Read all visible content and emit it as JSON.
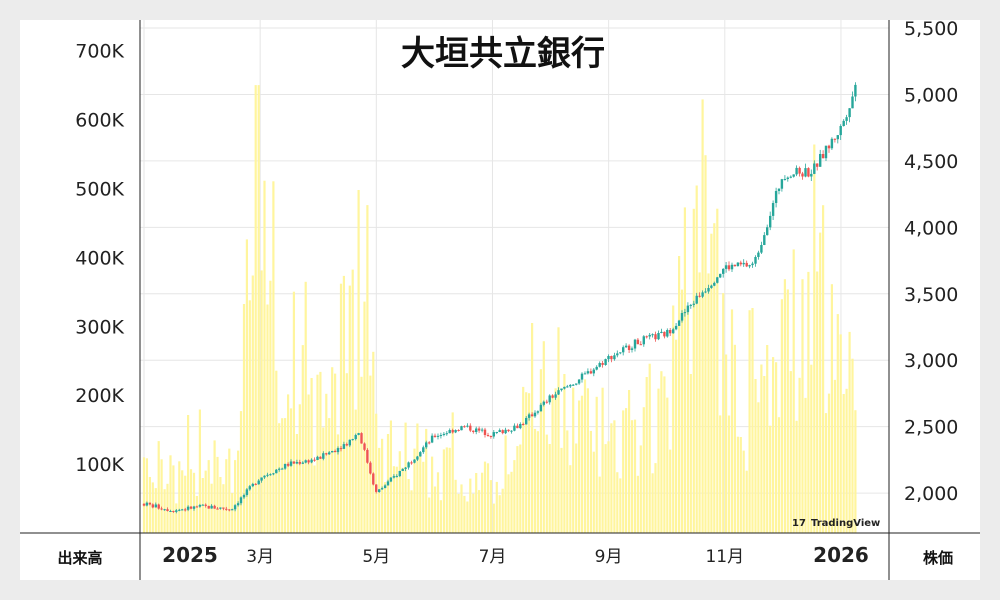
{
  "chart_data": {
    "type": "candlestick+volume",
    "title": "大垣共立銀行",
    "left_axis_label": "出来高",
    "right_axis_label": "株価",
    "watermark": "TradingView",
    "left_ticks": [
      "100K",
      "200K",
      "300K",
      "400K",
      "500K",
      "600K",
      "700K"
    ],
    "left_tick_values": [
      100000,
      200000,
      300000,
      400000,
      500000,
      600000,
      700000
    ],
    "left_ylim": [
      0,
      730000
    ],
    "right_ticks": [
      "2,000",
      "2,500",
      "3,000",
      "3,500",
      "4,000",
      "4,500",
      "5,000",
      "5,500"
    ],
    "right_tick_values": [
      2000,
      2500,
      3000,
      3500,
      4000,
      4500,
      5000,
      5500
    ],
    "right_ylim": [
      1700,
      5500
    ],
    "x_labels": [
      {
        "label": "2025",
        "month": 0,
        "bold": true
      },
      {
        "label": "3月",
        "month": 2,
        "bold": false
      },
      {
        "label": "5月",
        "month": 4,
        "bold": false
      },
      {
        "label": "7月",
        "month": 6,
        "bold": false
      },
      {
        "label": "9月",
        "month": 8,
        "bold": false
      },
      {
        "label": "11月",
        "month": 10,
        "bold": false
      },
      {
        "label": "2026",
        "month": 12,
        "bold": true
      }
    ],
    "xlim_months": [
      0,
      12.9
    ],
    "colors": {
      "up": "#26a69a",
      "down": "#ef5350",
      "volume": "#fff59d",
      "grid": "#e6e6e6"
    },
    "price_series": [
      {
        "m": 0.0,
        "close": 1920
      },
      {
        "m": 0.5,
        "close": 1870
      },
      {
        "m": 1.0,
        "close": 1900
      },
      {
        "m": 1.5,
        "close": 1880
      },
      {
        "m": 2.0,
        "close": 2120
      },
      {
        "m": 2.5,
        "close": 2220
      },
      {
        "m": 3.0,
        "close": 2260
      },
      {
        "m": 3.5,
        "close": 2380
      },
      {
        "m": 3.7,
        "close": 2460
      },
      {
        "m": 4.0,
        "close": 2000
      },
      {
        "m": 4.5,
        "close": 2200
      },
      {
        "m": 5.0,
        "close": 2430
      },
      {
        "m": 5.5,
        "close": 2500
      },
      {
        "m": 6.0,
        "close": 2440
      },
      {
        "m": 6.5,
        "close": 2520
      },
      {
        "m": 7.0,
        "close": 2720
      },
      {
        "m": 7.5,
        "close": 2860
      },
      {
        "m": 8.0,
        "close": 3020
      },
      {
        "m": 8.5,
        "close": 3140
      },
      {
        "m": 9.0,
        "close": 3200
      },
      {
        "m": 9.5,
        "close": 3460
      },
      {
        "m": 10.0,
        "close": 3700
      },
      {
        "m": 10.5,
        "close": 3720
      },
      {
        "m": 11.0,
        "close": 4400
      },
      {
        "m": 11.5,
        "close": 4420
      },
      {
        "m": 12.0,
        "close": 4750
      },
      {
        "m": 12.3,
        "close": 5120
      }
    ],
    "volume_series": [
      {
        "m": 0.0,
        "v": 120000
      },
      {
        "m": 0.7,
        "v": 70000
      },
      {
        "m": 1.1,
        "v": 160000
      },
      {
        "m": 1.6,
        "v": 100000
      },
      {
        "m": 2.0,
        "v": 620000
      },
      {
        "m": 2.3,
        "v": 320000
      },
      {
        "m": 3.0,
        "v": 170000
      },
      {
        "m": 3.8,
        "v": 400000
      },
      {
        "m": 4.2,
        "v": 120000
      },
      {
        "m": 5.0,
        "v": 110000
      },
      {
        "m": 5.5,
        "v": 90000
      },
      {
        "m": 6.0,
        "v": 70000
      },
      {
        "m": 7.0,
        "v": 240000
      },
      {
        "m": 8.0,
        "v": 120000
      },
      {
        "m": 9.0,
        "v": 200000
      },
      {
        "m": 9.6,
        "v": 480000
      },
      {
        "m": 10.0,
        "v": 260000
      },
      {
        "m": 10.5,
        "v": 180000
      },
      {
        "m": 11.0,
        "v": 280000
      },
      {
        "m": 11.6,
        "v": 420000
      },
      {
        "m": 12.0,
        "v": 260000
      },
      {
        "m": 12.4,
        "v": 180000
      }
    ]
  }
}
